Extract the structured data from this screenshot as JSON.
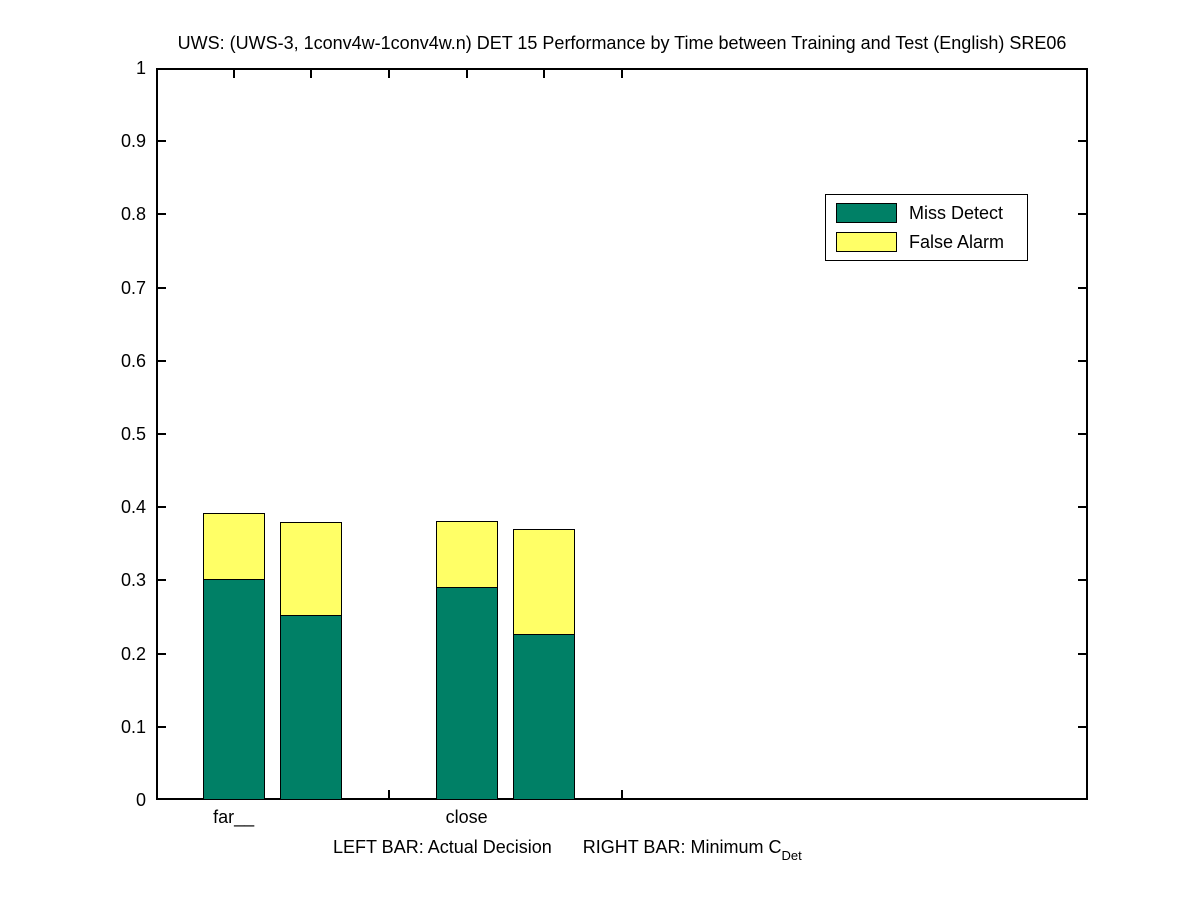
{
  "chart_data": {
    "type": "bar",
    "stacked": true,
    "title": "UWS: (UWS-3, 1conv4w-1conv4w.n) DET 15 Performance by Time between Training and Test (English) SRE06",
    "categories": [
      "far__",
      "close"
    ],
    "series": [
      {
        "name": "Miss Detect",
        "color": "#008066"
      },
      {
        "name": "False Alarm",
        "color": "#FFFF66"
      }
    ],
    "bars": [
      {
        "category": "far__",
        "kind": "actual-decision",
        "x": 1,
        "miss_detect": 0.3,
        "false_alarm": 0.092
      },
      {
        "category": "far__",
        "kind": "minimum-cdet",
        "x": 2,
        "miss_detect": 0.252,
        "false_alarm": 0.129
      },
      {
        "category": "close",
        "kind": "actual-decision",
        "x": 4,
        "miss_detect": 0.289,
        "false_alarm": 0.092
      },
      {
        "category": "close",
        "kind": "minimum-cdet",
        "x": 5,
        "miss_detect": 0.226,
        "false_alarm": 0.145
      }
    ],
    "bar_width": 0.8,
    "xlim": [
      0,
      12
    ],
    "ylim": [
      0,
      1
    ],
    "xticks": [
      1,
      2,
      3,
      4,
      5,
      6
    ],
    "x_labels": [
      {
        "x": 1,
        "text": "far__"
      },
      {
        "x": 4,
        "text": "close"
      }
    ],
    "yticks": [
      {
        "v": 0,
        "label": "0"
      },
      {
        "v": 0.1,
        "label": "0.1"
      },
      {
        "v": 0.2,
        "label": "0.2"
      },
      {
        "v": 0.3,
        "label": "0.3"
      },
      {
        "v": 0.4,
        "label": "0.4"
      },
      {
        "v": 0.5,
        "label": "0.5"
      },
      {
        "v": 0.6,
        "label": "0.6"
      },
      {
        "v": 0.7,
        "label": "0.7"
      },
      {
        "v": 0.8,
        "label": "0.8"
      },
      {
        "v": 0.9,
        "label": "0.9"
      },
      {
        "v": 1,
        "label": "1"
      }
    ],
    "grid": false,
    "legend_position": "upper-right"
  },
  "footnote": {
    "left_bar": "LEFT BAR: Actual Decision",
    "right_bar": "RIGHT BAR: Minimum C",
    "subscript": "Det"
  },
  "colors": {
    "miss_detect": "#008066",
    "false_alarm": "#FFFF66",
    "axis": "#000000",
    "background": "#FFFFFF"
  }
}
